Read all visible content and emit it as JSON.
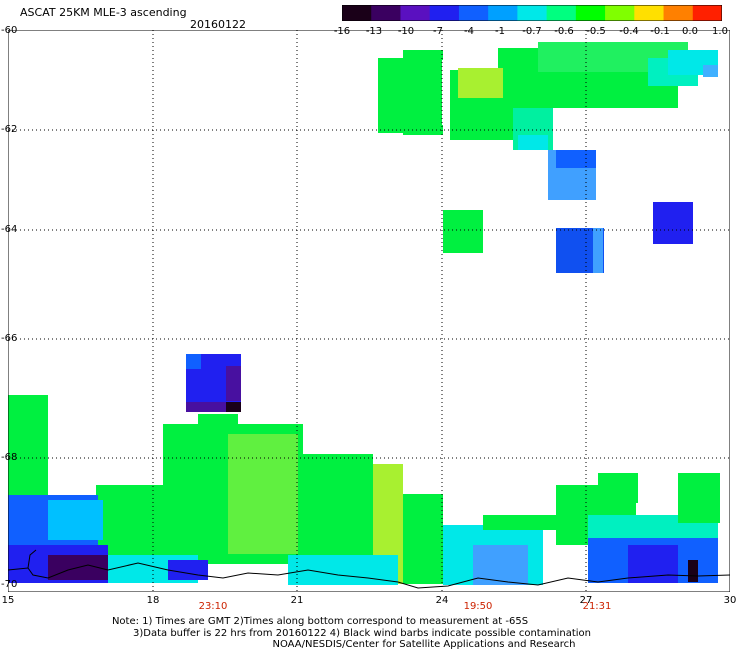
{
  "title": "ASCAT 25KM MLE-3 ascending",
  "date": "20160122",
  "colorbar": {
    "labels": [
      "-16",
      "-13",
      "-10",
      "-7",
      "-4",
      "-1",
      "-0.7",
      "-0.6",
      "-0.5",
      "-0.4",
      "-0.1",
      "0.0",
      "1.0"
    ],
    "colors": [
      "#1a0018",
      "#3a0060",
      "#5a10c0",
      "#2020f0",
      "#1060ff",
      "#00a0ff",
      "#00e8e8",
      "#00ff80",
      "#00ff00",
      "#80ff00",
      "#ffe000",
      "#ff8000",
      "#ff2000"
    ]
  },
  "axes": {
    "lat_labels": [
      "-60",
      "-62",
      "-64",
      "-66",
      "-68",
      "-70"
    ],
    "lon_labels": [
      "15",
      "18",
      "21",
      "24",
      "27",
      "30"
    ],
    "time_labels": [
      "23:10",
      "19:50",
      "21:31"
    ]
  },
  "notes": {
    "line1": "Note: 1) Times are GMT 2)Times along bottom correspond to measurement at -65S",
    "line2": "3)Data buffer is 22 hrs from 20160122 4) Black wind barbs indicate possible contamination",
    "line3": "NOAA/NESDIS/Center for Satellite Applications and Research"
  },
  "colors": {
    "green": "#00f040",
    "lime": "#60f040",
    "yellowgreen": "#a8f030",
    "cyan": "#00f0f0",
    "sky": "#40b0ff",
    "blue": "#1040f0",
    "navy": "#3010d0",
    "purple": "#4810a0",
    "coast": "#000000",
    "timelabel": "#cc2200"
  }
}
